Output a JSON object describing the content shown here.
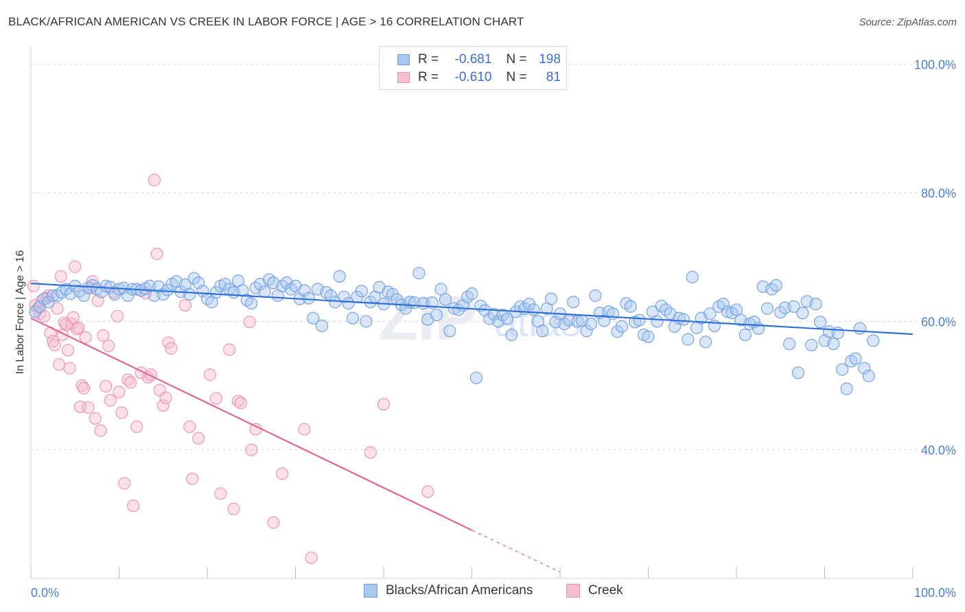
{
  "title": "BLACK/AFRICAN AMERICAN VS CREEK IN LABOR FORCE | AGE > 16 CORRELATION CHART",
  "source": "Source: ZipAtlas.com",
  "watermark": {
    "zip": "ZIP",
    "atlas": "atlas"
  },
  "legend": {
    "rows": [
      {
        "r_label": "R =",
        "r_value": "-0.681",
        "n_label": "N =",
        "n_value": "198"
      },
      {
        "r_label": "R =",
        "r_value": "-0.610",
        "n_label": "N =",
        "n_value": "81"
      }
    ]
  },
  "colors": {
    "blue_fill": "#a9c8f0",
    "blue_stroke": "#6d9de0",
    "blue_line": "#2f6fd6",
    "pink_fill": "#f6bcd0",
    "pink_stroke": "#ec8fb0",
    "pink_line": "#e0658f",
    "grid": "#d9d9d9",
    "axis_text": "#4a7fd0"
  },
  "chart_data": {
    "type": "scatter",
    "title": "BLACK/AFRICAN AMERICAN VS CREEK IN LABOR FORCE | AGE > 16 CORRELATION CHART",
    "xlabel": "",
    "ylabel": "In Labor Force | Age > 16",
    "xlim": [
      0,
      100
    ],
    "ylim": [
      20,
      102
    ],
    "x_tick_labels": [
      "0.0%",
      "100.0%"
    ],
    "y_ticks": [
      40,
      60,
      80,
      100
    ],
    "y_tick_labels": [
      "40.0%",
      "60.0%",
      "80.0%",
      "100.0%"
    ],
    "grid": true,
    "legend_position": "top-center",
    "series": [
      {
        "name": "Blacks/African Americans",
        "color": "#a9c8f0",
        "trend": {
          "x0": 0,
          "y0": 65.9,
          "x1": 100,
          "y1": 58.0
        },
        "points": [
          [
            0.5,
            61.5
          ],
          [
            1.0,
            62.3
          ],
          [
            1.5,
            63.5
          ],
          [
            2.0,
            63.0
          ],
          [
            2.5,
            64.0
          ],
          [
            3.0,
            64.0
          ],
          [
            3.5,
            64.5
          ],
          [
            4.0,
            65.0
          ],
          [
            4.5,
            64.3
          ],
          [
            5.0,
            65.5
          ],
          [
            5.5,
            64.7
          ],
          [
            6.0,
            64.0
          ],
          [
            6.5,
            65.2
          ],
          [
            7.0,
            65.6
          ],
          [
            7.5,
            65.0
          ],
          [
            8.0,
            64.6
          ],
          [
            8.5,
            65.5
          ],
          [
            9.0,
            65.3
          ],
          [
            9.5,
            64.2
          ],
          [
            10.0,
            65.0
          ],
          [
            10.5,
            65.2
          ],
          [
            11.0,
            64.0
          ],
          [
            11.5,
            65.0
          ],
          [
            12.0,
            65.0
          ],
          [
            12.5,
            64.8
          ],
          [
            13.0,
            65.1
          ],
          [
            13.5,
            65.5
          ],
          [
            14.0,
            64.0
          ],
          [
            14.5,
            65.4
          ],
          [
            15.0,
            64.2
          ],
          [
            15.5,
            64.9
          ],
          [
            16.0,
            65.8
          ],
          [
            16.5,
            66.2
          ],
          [
            17.0,
            64.6
          ],
          [
            17.5,
            65.7
          ],
          [
            18.0,
            64.2
          ],
          [
            18.5,
            66.7
          ],
          [
            19.0,
            66.0
          ],
          [
            19.5,
            64.7
          ],
          [
            20.0,
            63.5
          ],
          [
            20.5,
            63.0
          ],
          [
            21.0,
            64.5
          ],
          [
            21.5,
            65.5
          ],
          [
            22.0,
            65.8
          ],
          [
            22.5,
            65.0
          ],
          [
            23.0,
            64.5
          ],
          [
            23.5,
            66.3
          ],
          [
            24.0,
            64.8
          ],
          [
            24.5,
            63.3
          ],
          [
            25.0,
            62.8
          ],
          [
            25.5,
            65.2
          ],
          [
            26.0,
            65.8
          ],
          [
            26.5,
            64.6
          ],
          [
            27.0,
            66.5
          ],
          [
            27.5,
            66.0
          ],
          [
            28.0,
            64.0
          ],
          [
            28.5,
            65.5
          ],
          [
            29.0,
            66.0
          ],
          [
            29.5,
            65.0
          ],
          [
            30.0,
            65.5
          ],
          [
            30.5,
            63.5
          ],
          [
            31.0,
            64.8
          ],
          [
            31.5,
            63.6
          ],
          [
            32.0,
            60.5
          ],
          [
            32.5,
            65.0
          ],
          [
            33.0,
            59.3
          ],
          [
            33.5,
            64.5
          ],
          [
            34.0,
            64.0
          ],
          [
            34.5,
            63.0
          ],
          [
            35.0,
            67.0
          ],
          [
            35.5,
            63.8
          ],
          [
            36.0,
            62.8
          ],
          [
            36.5,
            60.5
          ],
          [
            37.0,
            63.8
          ],
          [
            37.5,
            64.7
          ],
          [
            38.0,
            60.0
          ],
          [
            38.5,
            63.0
          ],
          [
            39.0,
            63.8
          ],
          [
            39.5,
            65.3
          ],
          [
            40.0,
            62.7
          ],
          [
            40.5,
            64.6
          ],
          [
            41.0,
            64.2
          ],
          [
            41.5,
            63.4
          ],
          [
            42.0,
            62.6
          ],
          [
            42.5,
            62.0
          ],
          [
            43.0,
            63.0
          ],
          [
            43.5,
            62.9
          ],
          [
            44.0,
            67.5
          ],
          [
            44.5,
            62.8
          ],
          [
            45.0,
            60.3
          ],
          [
            45.5,
            62.9
          ],
          [
            46.0,
            61.0
          ],
          [
            46.5,
            65.0
          ],
          [
            47.0,
            63.4
          ],
          [
            47.5,
            58.5
          ],
          [
            48.0,
            62.0
          ],
          [
            48.5,
            61.8
          ],
          [
            49.0,
            62.5
          ],
          [
            49.5,
            63.8
          ],
          [
            50.0,
            64.3
          ],
          [
            50.5,
            51.2
          ],
          [
            51.0,
            62.4
          ],
          [
            51.5,
            61.7
          ],
          [
            52.0,
            60.4
          ],
          [
            52.5,
            61.1
          ],
          [
            53.0,
            60.0
          ],
          [
            53.5,
            61.0
          ],
          [
            54.0,
            60.4
          ],
          [
            54.5,
            57.9
          ],
          [
            55.0,
            61.5
          ],
          [
            55.5,
            62.3
          ],
          [
            56.0,
            62.0
          ],
          [
            56.5,
            62.7
          ],
          [
            57.0,
            61.8
          ],
          [
            57.5,
            60.0
          ],
          [
            58.0,
            58.5
          ],
          [
            58.5,
            62.0
          ],
          [
            59.0,
            63.5
          ],
          [
            59.5,
            59.9
          ],
          [
            60.0,
            61.2
          ],
          [
            60.5,
            59.6
          ],
          [
            61.0,
            60.2
          ],
          [
            61.5,
            63.0
          ],
          [
            62.0,
            60.0
          ],
          [
            62.5,
            60.1
          ],
          [
            63.0,
            58.5
          ],
          [
            63.5,
            59.6
          ],
          [
            64.0,
            64.0
          ],
          [
            64.5,
            61.3
          ],
          [
            65.0,
            60.1
          ],
          [
            65.5,
            61.5
          ],
          [
            66.0,
            61.2
          ],
          [
            66.5,
            58.4
          ],
          [
            67.0,
            59.2
          ],
          [
            67.5,
            62.8
          ],
          [
            68.0,
            62.3
          ],
          [
            68.5,
            59.9
          ],
          [
            69.0,
            60.2
          ],
          [
            69.5,
            57.9
          ],
          [
            70.0,
            57.6
          ],
          [
            70.5,
            61.5
          ],
          [
            71.0,
            60.0
          ],
          [
            71.5,
            62.4
          ],
          [
            72.0,
            61.8
          ],
          [
            72.5,
            61.2
          ],
          [
            73.0,
            59.2
          ],
          [
            73.5,
            60.5
          ],
          [
            74.0,
            60.3
          ],
          [
            74.5,
            57.2
          ],
          [
            75.0,
            66.9
          ],
          [
            75.5,
            59.0
          ],
          [
            76.0,
            60.5
          ],
          [
            76.5,
            56.8
          ],
          [
            77.0,
            61.2
          ],
          [
            77.5,
            59.3
          ],
          [
            78.0,
            62.3
          ],
          [
            78.5,
            62.7
          ],
          [
            79.0,
            61.5
          ],
          [
            79.5,
            61.3
          ],
          [
            80.0,
            61.8
          ],
          [
            80.5,
            60.2
          ],
          [
            81.0,
            57.9
          ],
          [
            81.5,
            59.6
          ],
          [
            82.0,
            59.9
          ],
          [
            82.5,
            58.9
          ],
          [
            83.0,
            65.4
          ],
          [
            83.5,
            62.0
          ],
          [
            84.0,
            65.0
          ],
          [
            84.5,
            65.6
          ],
          [
            85.0,
            61.4
          ],
          [
            85.5,
            62.1
          ],
          [
            86.0,
            56.5
          ],
          [
            86.5,
            62.3
          ],
          [
            87.0,
            52.0
          ],
          [
            87.5,
            61.3
          ],
          [
            88.0,
            63.1
          ],
          [
            88.5,
            56.3
          ],
          [
            89.0,
            62.7
          ],
          [
            89.5,
            59.9
          ],
          [
            90.0,
            57.0
          ],
          [
            90.5,
            58.4
          ],
          [
            91.0,
            56.5
          ],
          [
            91.5,
            58.2
          ],
          [
            92.0,
            52.5
          ],
          [
            92.5,
            49.5
          ],
          [
            93.0,
            53.8
          ],
          [
            93.5,
            54.2
          ],
          [
            94.0,
            58.9
          ],
          [
            94.5,
            52.7
          ],
          [
            95.0,
            51.5
          ],
          [
            95.5,
            57.0
          ]
        ]
      },
      {
        "name": "Creek",
        "color": "#f6bcd0",
        "trend": {
          "x0": 0,
          "y0": 60.5,
          "x1": 50,
          "y1": 27.5,
          "dash_to_x": 60,
          "dash_to_y": 21.0
        },
        "points": [
          [
            0.3,
            65.5
          ],
          [
            0.5,
            62.5
          ],
          [
            0.8,
            62.0
          ],
          [
            1.0,
            61.2
          ],
          [
            1.2,
            63.2
          ],
          [
            1.5,
            60.8
          ],
          [
            1.8,
            63.6
          ],
          [
            2.0,
            64.0
          ],
          [
            2.2,
            58.2
          ],
          [
            2.5,
            56.9
          ],
          [
            2.7,
            56.3
          ],
          [
            3.0,
            62.0
          ],
          [
            3.2,
            53.3
          ],
          [
            3.4,
            67.0
          ],
          [
            3.6,
            57.9
          ],
          [
            3.8,
            59.8
          ],
          [
            4.0,
            59.5
          ],
          [
            4.2,
            55.5
          ],
          [
            4.4,
            52.7
          ],
          [
            4.6,
            59.6
          ],
          [
            4.8,
            60.6
          ],
          [
            5.0,
            68.5
          ],
          [
            5.2,
            58.8
          ],
          [
            5.4,
            59.0
          ],
          [
            5.6,
            46.7
          ],
          [
            5.8,
            50.0
          ],
          [
            6.0,
            49.6
          ],
          [
            6.2,
            57.5
          ],
          [
            6.5,
            46.6
          ],
          [
            6.8,
            65.2
          ],
          [
            7.0,
            66.2
          ],
          [
            7.3,
            44.9
          ],
          [
            7.6,
            63.2
          ],
          [
            7.9,
            43.0
          ],
          [
            8.2,
            57.8
          ],
          [
            8.5,
            49.9
          ],
          [
            8.8,
            56.2
          ],
          [
            9.0,
            47.7
          ],
          [
            9.4,
            64.5
          ],
          [
            9.8,
            60.8
          ],
          [
            10.0,
            49.0
          ],
          [
            10.3,
            45.8
          ],
          [
            10.6,
            34.8
          ],
          [
            11.0,
            50.9
          ],
          [
            11.3,
            50.5
          ],
          [
            11.6,
            31.3
          ],
          [
            12.0,
            43.6
          ],
          [
            12.5,
            52.0
          ],
          [
            13.0,
            64.4
          ],
          [
            13.3,
            51.3
          ],
          [
            13.6,
            51.7
          ],
          [
            14.0,
            82.0
          ],
          [
            14.3,
            70.5
          ],
          [
            14.6,
            49.3
          ],
          [
            15.0,
            46.9
          ],
          [
            15.3,
            48.1
          ],
          [
            15.6,
            56.7
          ],
          [
            15.9,
            55.8
          ],
          [
            17.5,
            62.5
          ],
          [
            18.0,
            43.6
          ],
          [
            18.3,
            35.5
          ],
          [
            19.0,
            41.8
          ],
          [
            20.3,
            51.7
          ],
          [
            21.0,
            48.0
          ],
          [
            21.5,
            33.2
          ],
          [
            22.5,
            55.6
          ],
          [
            23.0,
            30.8
          ],
          [
            23.5,
            47.6
          ],
          [
            23.8,
            47.3
          ],
          [
            24.8,
            59.9
          ],
          [
            25.0,
            40.0
          ],
          [
            25.5,
            43.2
          ],
          [
            27.5,
            28.7
          ],
          [
            28.5,
            36.3
          ],
          [
            31.0,
            43.2
          ],
          [
            31.8,
            23.2
          ],
          [
            38.5,
            39.6
          ],
          [
            40.0,
            47.1
          ],
          [
            45.0,
            33.5
          ]
        ]
      }
    ]
  },
  "bottom_legend": [
    {
      "label": "Blacks/African Americans"
    },
    {
      "label": "Creek"
    }
  ]
}
